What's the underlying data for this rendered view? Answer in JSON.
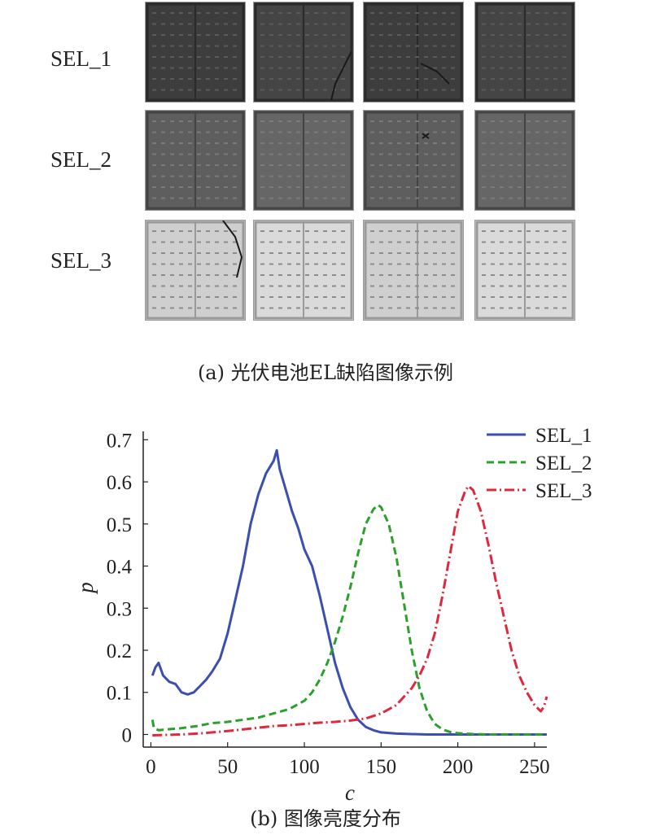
{
  "panel_a": {
    "rows": [
      {
        "label": "SEL_1",
        "tone": "dark"
      },
      {
        "label": "SEL_2",
        "tone": "medium"
      },
      {
        "label": "SEL_3",
        "tone": "bright"
      }
    ],
    "caption": "(a) 光伏电池EL缺陷图像示例"
  },
  "panel_b": {
    "caption": "(b) 图像亮度分布"
  },
  "chart_data": {
    "type": "line",
    "xlabel": "c",
    "ylabel": "p",
    "xlim": [
      -5,
      258
    ],
    "ylim": [
      -0.03,
      0.72
    ],
    "xticks": [
      0,
      50,
      100,
      150,
      200,
      250
    ],
    "yticks": [
      0,
      0.1,
      0.2,
      0.3,
      0.4,
      0.5,
      0.6,
      0.7
    ],
    "legend": "top-right",
    "grid": false,
    "series": [
      {
        "name": "SEL_1",
        "color": "#3a4fb0",
        "style": "solid",
        "x": [
          1,
          3,
          5,
          8,
          12,
          16,
          20,
          24,
          28,
          32,
          36,
          40,
          45,
          50,
          55,
          60,
          65,
          70,
          75,
          80,
          82,
          84,
          88,
          92,
          96,
          100,
          105,
          110,
          115,
          120,
          125,
          130,
          135,
          140,
          145,
          150,
          160,
          170,
          180,
          200,
          220,
          240,
          258
        ],
        "y": [
          0.14,
          0.16,
          0.17,
          0.14,
          0.125,
          0.12,
          0.1,
          0.095,
          0.1,
          0.115,
          0.13,
          0.15,
          0.18,
          0.24,
          0.32,
          0.4,
          0.5,
          0.57,
          0.62,
          0.65,
          0.675,
          0.63,
          0.58,
          0.53,
          0.49,
          0.44,
          0.4,
          0.33,
          0.25,
          0.17,
          0.11,
          0.065,
          0.035,
          0.018,
          0.01,
          0.005,
          0.002,
          0.001,
          0.0,
          0.0,
          0.0,
          0.0,
          0.0
        ]
      },
      {
        "name": "SEL_2",
        "color": "#2ca02c",
        "style": "dashed",
        "x": [
          1,
          2,
          5,
          10,
          20,
          30,
          40,
          50,
          60,
          70,
          80,
          90,
          100,
          105,
          110,
          115,
          120,
          125,
          130,
          135,
          140,
          145,
          148,
          150,
          155,
          160,
          165,
          170,
          175,
          180,
          185,
          190,
          195,
          200,
          210,
          220,
          240,
          258
        ],
        "y": [
          0.035,
          0.015,
          0.01,
          0.012,
          0.015,
          0.02,
          0.027,
          0.03,
          0.035,
          0.04,
          0.05,
          0.06,
          0.08,
          0.1,
          0.13,
          0.17,
          0.22,
          0.28,
          0.35,
          0.43,
          0.5,
          0.535,
          0.545,
          0.54,
          0.5,
          0.42,
          0.31,
          0.2,
          0.11,
          0.055,
          0.025,
          0.012,
          0.006,
          0.003,
          0.001,
          0.0,
          0.0,
          0.0
        ]
      },
      {
        "name": "SEL_3",
        "color": "#e0283c",
        "style": "dashdot",
        "x": [
          1,
          10,
          20,
          30,
          40,
          50,
          60,
          70,
          80,
          90,
          100,
          110,
          120,
          130,
          140,
          150,
          160,
          170,
          175,
          180,
          185,
          190,
          195,
          200,
          205,
          207,
          210,
          215,
          220,
          225,
          230,
          235,
          240,
          245,
          250,
          254,
          256,
          258
        ],
        "y": [
          -0.002,
          -0.001,
          0.0,
          0.002,
          0.005,
          0.008,
          0.012,
          0.016,
          0.02,
          0.022,
          0.025,
          0.028,
          0.03,
          0.033,
          0.038,
          0.05,
          0.07,
          0.11,
          0.14,
          0.18,
          0.24,
          0.33,
          0.43,
          0.53,
          0.58,
          0.59,
          0.58,
          0.53,
          0.45,
          0.36,
          0.28,
          0.2,
          0.14,
          0.1,
          0.07,
          0.055,
          0.065,
          0.09
        ]
      }
    ]
  }
}
